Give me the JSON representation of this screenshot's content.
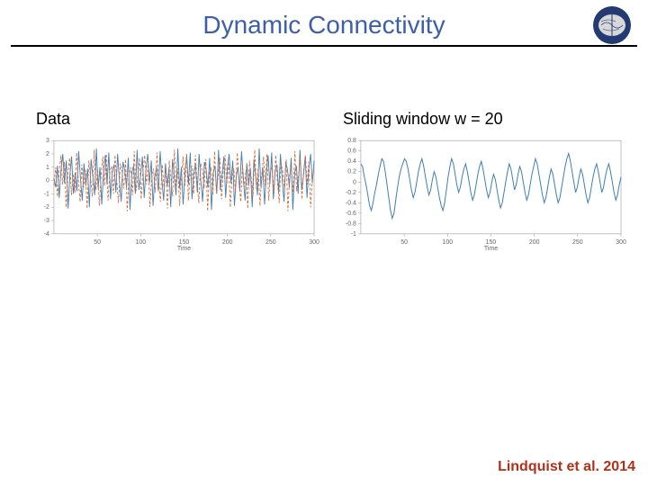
{
  "title": "Dynamic Connectivity",
  "title_color": "#3c5fa8",
  "logo": {
    "bg": "#233a72",
    "brain": "#d8d8d8"
  },
  "cite": "Lindquist et al. 2014",
  "cite_color": "#b23018",
  "left_chart": {
    "label": "Data",
    "type": "line",
    "xlabel": "Time",
    "xlim": [
      0,
      300
    ],
    "xticks": [
      50,
      100,
      150,
      200,
      250,
      300
    ],
    "ylim": [
      -4,
      3
    ],
    "yticks": [
      -4,
      -3,
      -2,
      -1,
      0,
      1,
      2,
      3
    ],
    "background": "#ffffff",
    "axis_color": "#999999",
    "font_size_ticks": 7,
    "series": [
      {
        "name": "series1",
        "color": "#3f7fb3",
        "width": 0.9,
        "dash": "none",
        "y": [
          0.2,
          -0.5,
          1.1,
          -1.3,
          0.8,
          2.0,
          -0.2,
          1.5,
          -2.1,
          0.4,
          1.8,
          -1.0,
          0.6,
          -0.8,
          2.2,
          0.1,
          -1.5,
          1.3,
          -0.4,
          0.9,
          -2.0,
          1.6,
          0.3,
          -1.1,
          2.4,
          -0.6,
          1.0,
          -1.8,
          0.5,
          1.9,
          -0.3,
          2.1,
          -1.4,
          0.7,
          1.2,
          -0.9,
          2.0,
          0.0,
          -1.6,
          1.4,
          0.8,
          -0.5,
          1.7,
          -2.2,
          0.6,
          1.1,
          -1.0,
          2.3,
          -0.7,
          0.4,
          1.8,
          -1.3,
          0.9,
          2.0,
          -0.2,
          1.5,
          -1.9,
          0.3,
          1.0,
          -0.8,
          2.2,
          0.1,
          -1.5,
          1.3,
          -0.4,
          0.9,
          -2.0,
          1.6,
          0.3,
          -1.1,
          2.4,
          -0.6,
          1.0,
          -1.8,
          0.5,
          1.9,
          -0.3,
          2.1,
          -1.4,
          0.7,
          1.2,
          -0.9,
          2.0,
          0.0,
          -1.6,
          1.4,
          0.8,
          -0.5,
          1.7,
          -2.2,
          0.6,
          1.1,
          -1.0,
          2.3,
          -0.7,
          0.4,
          1.8,
          -1.3,
          0.9,
          2.0,
          -0.2,
          1.5,
          -1.9,
          0.3,
          1.0,
          -0.8,
          2.2,
          0.1,
          -1.5,
          1.3,
          -0.4,
          0.9,
          -2.0,
          1.6,
          0.3,
          -1.1,
          2.4,
          -0.6,
          1.0,
          -1.8,
          0.5,
          1.9,
          -0.3,
          2.1,
          -1.4,
          0.7,
          1.2,
          -0.9,
          2.0,
          0.0,
          -1.6,
          1.4,
          0.8,
          -0.5,
          1.7,
          -2.2,
          0.6,
          1.1,
          -1.0,
          2.3,
          -0.7,
          0.4,
          1.8,
          -1.3,
          0.9,
          2.0,
          -0.2,
          1.5
        ]
      },
      {
        "name": "series2",
        "color": "#d96b3a",
        "width": 0.9,
        "dash": "3,2",
        "y": [
          -0.4,
          1.0,
          -1.2,
          0.7,
          1.9,
          -0.3,
          1.4,
          -2.0,
          0.5,
          1.7,
          -1.1,
          0.5,
          -0.9,
          2.1,
          0.0,
          -1.6,
          1.2,
          -0.5,
          0.8,
          -2.1,
          1.5,
          0.2,
          -1.2,
          2.3,
          -0.7,
          0.9,
          -1.9,
          0.4,
          1.8,
          -0.4,
          2.0,
          -1.5,
          0.6,
          1.1,
          -1.0,
          1.9,
          -0.1,
          -1.7,
          1.3,
          0.7,
          -0.6,
          1.6,
          -2.3,
          0.5,
          1.0,
          -1.1,
          2.2,
          -0.8,
          0.3,
          1.7,
          -1.4,
          0.8,
          1.9,
          -0.3,
          1.4,
          -2.0,
          0.2,
          0.9,
          -0.9,
          2.1,
          0.0,
          -1.6,
          1.2,
          -0.5,
          0.8,
          -2.1,
          1.5,
          0.2,
          -1.2,
          2.3,
          -0.7,
          0.9,
          -1.9,
          0.4,
          1.8,
          -0.4,
          2.0,
          -1.5,
          0.6,
          1.1,
          -1.0,
          1.9,
          -0.1,
          -1.7,
          1.3,
          0.7,
          -0.6,
          1.6,
          -2.3,
          0.5,
          1.0,
          -1.1,
          2.2,
          -0.8,
          0.3,
          1.7,
          -1.4,
          0.8,
          1.9,
          -0.3,
          1.4,
          -2.0,
          0.2,
          0.9,
          -0.9,
          2.1,
          0.0,
          -1.6,
          1.2,
          -0.5,
          0.8,
          -2.1,
          1.5,
          0.2,
          -1.2,
          2.3,
          -0.7,
          0.9,
          -1.9,
          0.4,
          1.8,
          -0.4,
          2.0,
          -1.5,
          0.6,
          1.1,
          -1.0,
          1.9,
          -0.1,
          -1.7,
          1.3,
          0.7,
          -0.6,
          1.6,
          -2.3,
          0.5,
          1.0,
          -1.1,
          2.2,
          -0.8,
          0.3,
          1.7,
          -1.4,
          0.8,
          1.9,
          -0.3,
          1.4,
          -2.0,
          0.2,
          0.9
        ]
      }
    ]
  },
  "right_chart": {
    "label": "Sliding window w = 20",
    "type": "line",
    "xlabel": "Time",
    "xlim": [
      0,
      300
    ],
    "xticks": [
      50,
      100,
      150,
      200,
      250,
      300
    ],
    "ylim": [
      -1.0,
      0.8
    ],
    "yticks": [
      -1.0,
      -0.8,
      -0.6,
      -0.4,
      -0.2,
      0,
      0.2,
      0.4,
      0.6,
      0.8
    ],
    "background": "#ffffff",
    "axis_color": "#999999",
    "font_size_ticks": 7,
    "series": [
      {
        "name": "corr",
        "color": "#3f7fb3",
        "width": 1.0,
        "dash": "none",
        "y": [
          0.35,
          0.3,
          0.1,
          -0.05,
          -0.25,
          -0.45,
          -0.55,
          -0.4,
          -0.2,
          -0.05,
          0.15,
          0.3,
          0.45,
          0.4,
          0.2,
          -0.05,
          -0.3,
          -0.55,
          -0.7,
          -0.6,
          -0.35,
          -0.1,
          0.1,
          0.25,
          0.35,
          0.45,
          0.4,
          0.25,
          0.05,
          -0.15,
          -0.3,
          -0.2,
          0.0,
          0.2,
          0.35,
          0.45,
          0.3,
          0.1,
          -0.1,
          -0.25,
          -0.15,
          0.05,
          0.2,
          0.1,
          -0.1,
          -0.3,
          -0.45,
          -0.55,
          -0.4,
          -0.15,
          0.1,
          0.3,
          0.45,
          0.35,
          0.15,
          -0.05,
          -0.2,
          -0.1,
          0.1,
          0.25,
          0.35,
          0.2,
          0.0,
          -0.2,
          -0.35,
          -0.25,
          -0.05,
          0.15,
          0.3,
          0.4,
          0.25,
          0.05,
          -0.15,
          -0.3,
          -0.2,
          0.0,
          0.15,
          0.05,
          -0.15,
          -0.35,
          -0.5,
          -0.4,
          -0.2,
          0.0,
          0.2,
          0.35,
          0.25,
          0.05,
          -0.15,
          -0.05,
          0.15,
          0.3,
          0.2,
          0.0,
          -0.2,
          -0.35,
          -0.25,
          -0.05,
          0.15,
          0.3,
          0.45,
          0.35,
          0.15,
          -0.05,
          -0.25,
          -0.4,
          -0.3,
          -0.1,
          0.1,
          0.25,
          0.15,
          -0.05,
          -0.25,
          -0.4,
          -0.3,
          -0.1,
          0.1,
          0.3,
          0.45,
          0.55,
          0.4,
          0.2,
          0.0,
          -0.2,
          -0.1,
          0.1,
          0.25,
          0.15,
          -0.05,
          -0.25,
          -0.4,
          -0.3,
          -0.1,
          0.1,
          0.25,
          0.35,
          0.2,
          0.0,
          -0.2,
          -0.1,
          0.1,
          0.25,
          0.35,
          0.2,
          0.0,
          -0.2,
          -0.35,
          -0.25,
          -0.05,
          0.1
        ]
      }
    ]
  }
}
